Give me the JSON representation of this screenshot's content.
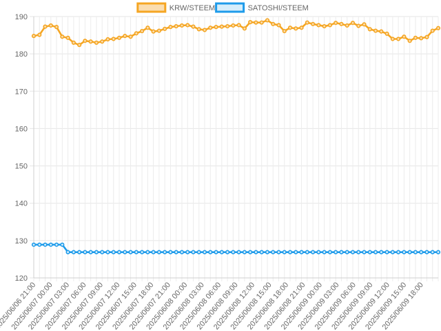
{
  "chart_data": {
    "type": "line",
    "title": "",
    "xlabel": "",
    "ylabel": "",
    "ylim": [
      120,
      190
    ],
    "yticks": [
      120,
      130,
      140,
      150,
      160,
      170,
      180,
      190
    ],
    "grid": true,
    "legend_position": "top",
    "x_tick_labels": [
      "2025/06/06 21:00",
      "2025/06/07 00:00",
      "2025/06/07 03:00",
      "2025/06/07 06:00",
      "2025/06/07 09:00",
      "2025/06/07 12:00",
      "2025/06/07 15:00",
      "2025/06/07 18:00",
      "2025/06/07 21:00",
      "2025/06/08 00:00",
      "2025/06/08 03:00",
      "2025/06/08 06:00",
      "2025/06/08 09:00",
      "2025/06/08 12:00",
      "2025/06/08 15:00",
      "2025/06/08 18:00",
      "2025/06/08 21:00",
      "2025/06/09 00:00",
      "2025/06/09 03:00",
      "2025/06/09 06:00",
      "2025/06/09 09:00",
      "2025/06/09 12:00",
      "2025/06/09 15:00",
      "2025/06/09 18:00"
    ],
    "series": [
      {
        "name": "KRW/STEEM",
        "color": "#F5A623",
        "fill": "#FADDB0",
        "values": [
          184.8,
          185.1,
          187.3,
          187.6,
          187.2,
          184.6,
          184.3,
          183.0,
          182.4,
          183.5,
          183.3,
          183.0,
          183.3,
          183.9,
          184.0,
          184.3,
          184.8,
          184.6,
          185.5,
          186.1,
          187.0,
          186.0,
          186.2,
          186.7,
          187.2,
          187.4,
          187.6,
          187.7,
          187.3,
          186.6,
          186.4,
          187.0,
          187.2,
          187.3,
          187.4,
          187.6,
          187.7,
          186.8,
          188.5,
          188.4,
          188.4,
          189.0,
          188.0,
          187.7,
          186.1,
          187.0,
          186.8,
          187.0,
          188.4,
          188.0,
          187.7,
          187.4,
          187.7,
          188.3,
          188.0,
          187.6,
          188.3,
          187.5,
          187.9,
          186.6,
          186.2,
          186.0,
          185.4,
          184.0,
          184.0,
          184.6,
          183.5,
          184.3,
          184.2,
          184.5,
          186.2,
          186.9
        ]
      },
      {
        "name": "SATOSHI/STEEM",
        "color": "#1E9BEA",
        "fill": "#D6EEFB",
        "values": [
          128.9,
          128.9,
          128.9,
          128.9,
          128.9,
          128.9,
          126.9,
          126.9,
          126.9,
          126.9,
          126.9,
          126.9,
          126.9,
          126.9,
          126.9,
          126.9,
          126.9,
          126.9,
          126.9,
          126.9,
          126.9,
          126.9,
          126.9,
          126.9,
          126.9,
          126.9,
          126.9,
          126.9,
          126.9,
          126.9,
          126.9,
          126.9,
          126.9,
          126.9,
          126.9,
          126.9,
          126.9,
          126.9,
          126.9,
          126.9,
          126.9,
          126.9,
          126.9,
          126.9,
          126.9,
          126.9,
          126.9,
          126.9,
          126.9,
          126.9,
          126.9,
          126.9,
          126.9,
          126.9,
          126.9,
          126.9,
          126.9,
          126.9,
          126.9,
          126.9,
          126.9,
          126.9,
          126.9,
          126.9,
          126.9,
          126.9,
          126.9,
          126.9,
          126.9,
          126.9,
          126.9,
          126.9
        ]
      }
    ]
  }
}
